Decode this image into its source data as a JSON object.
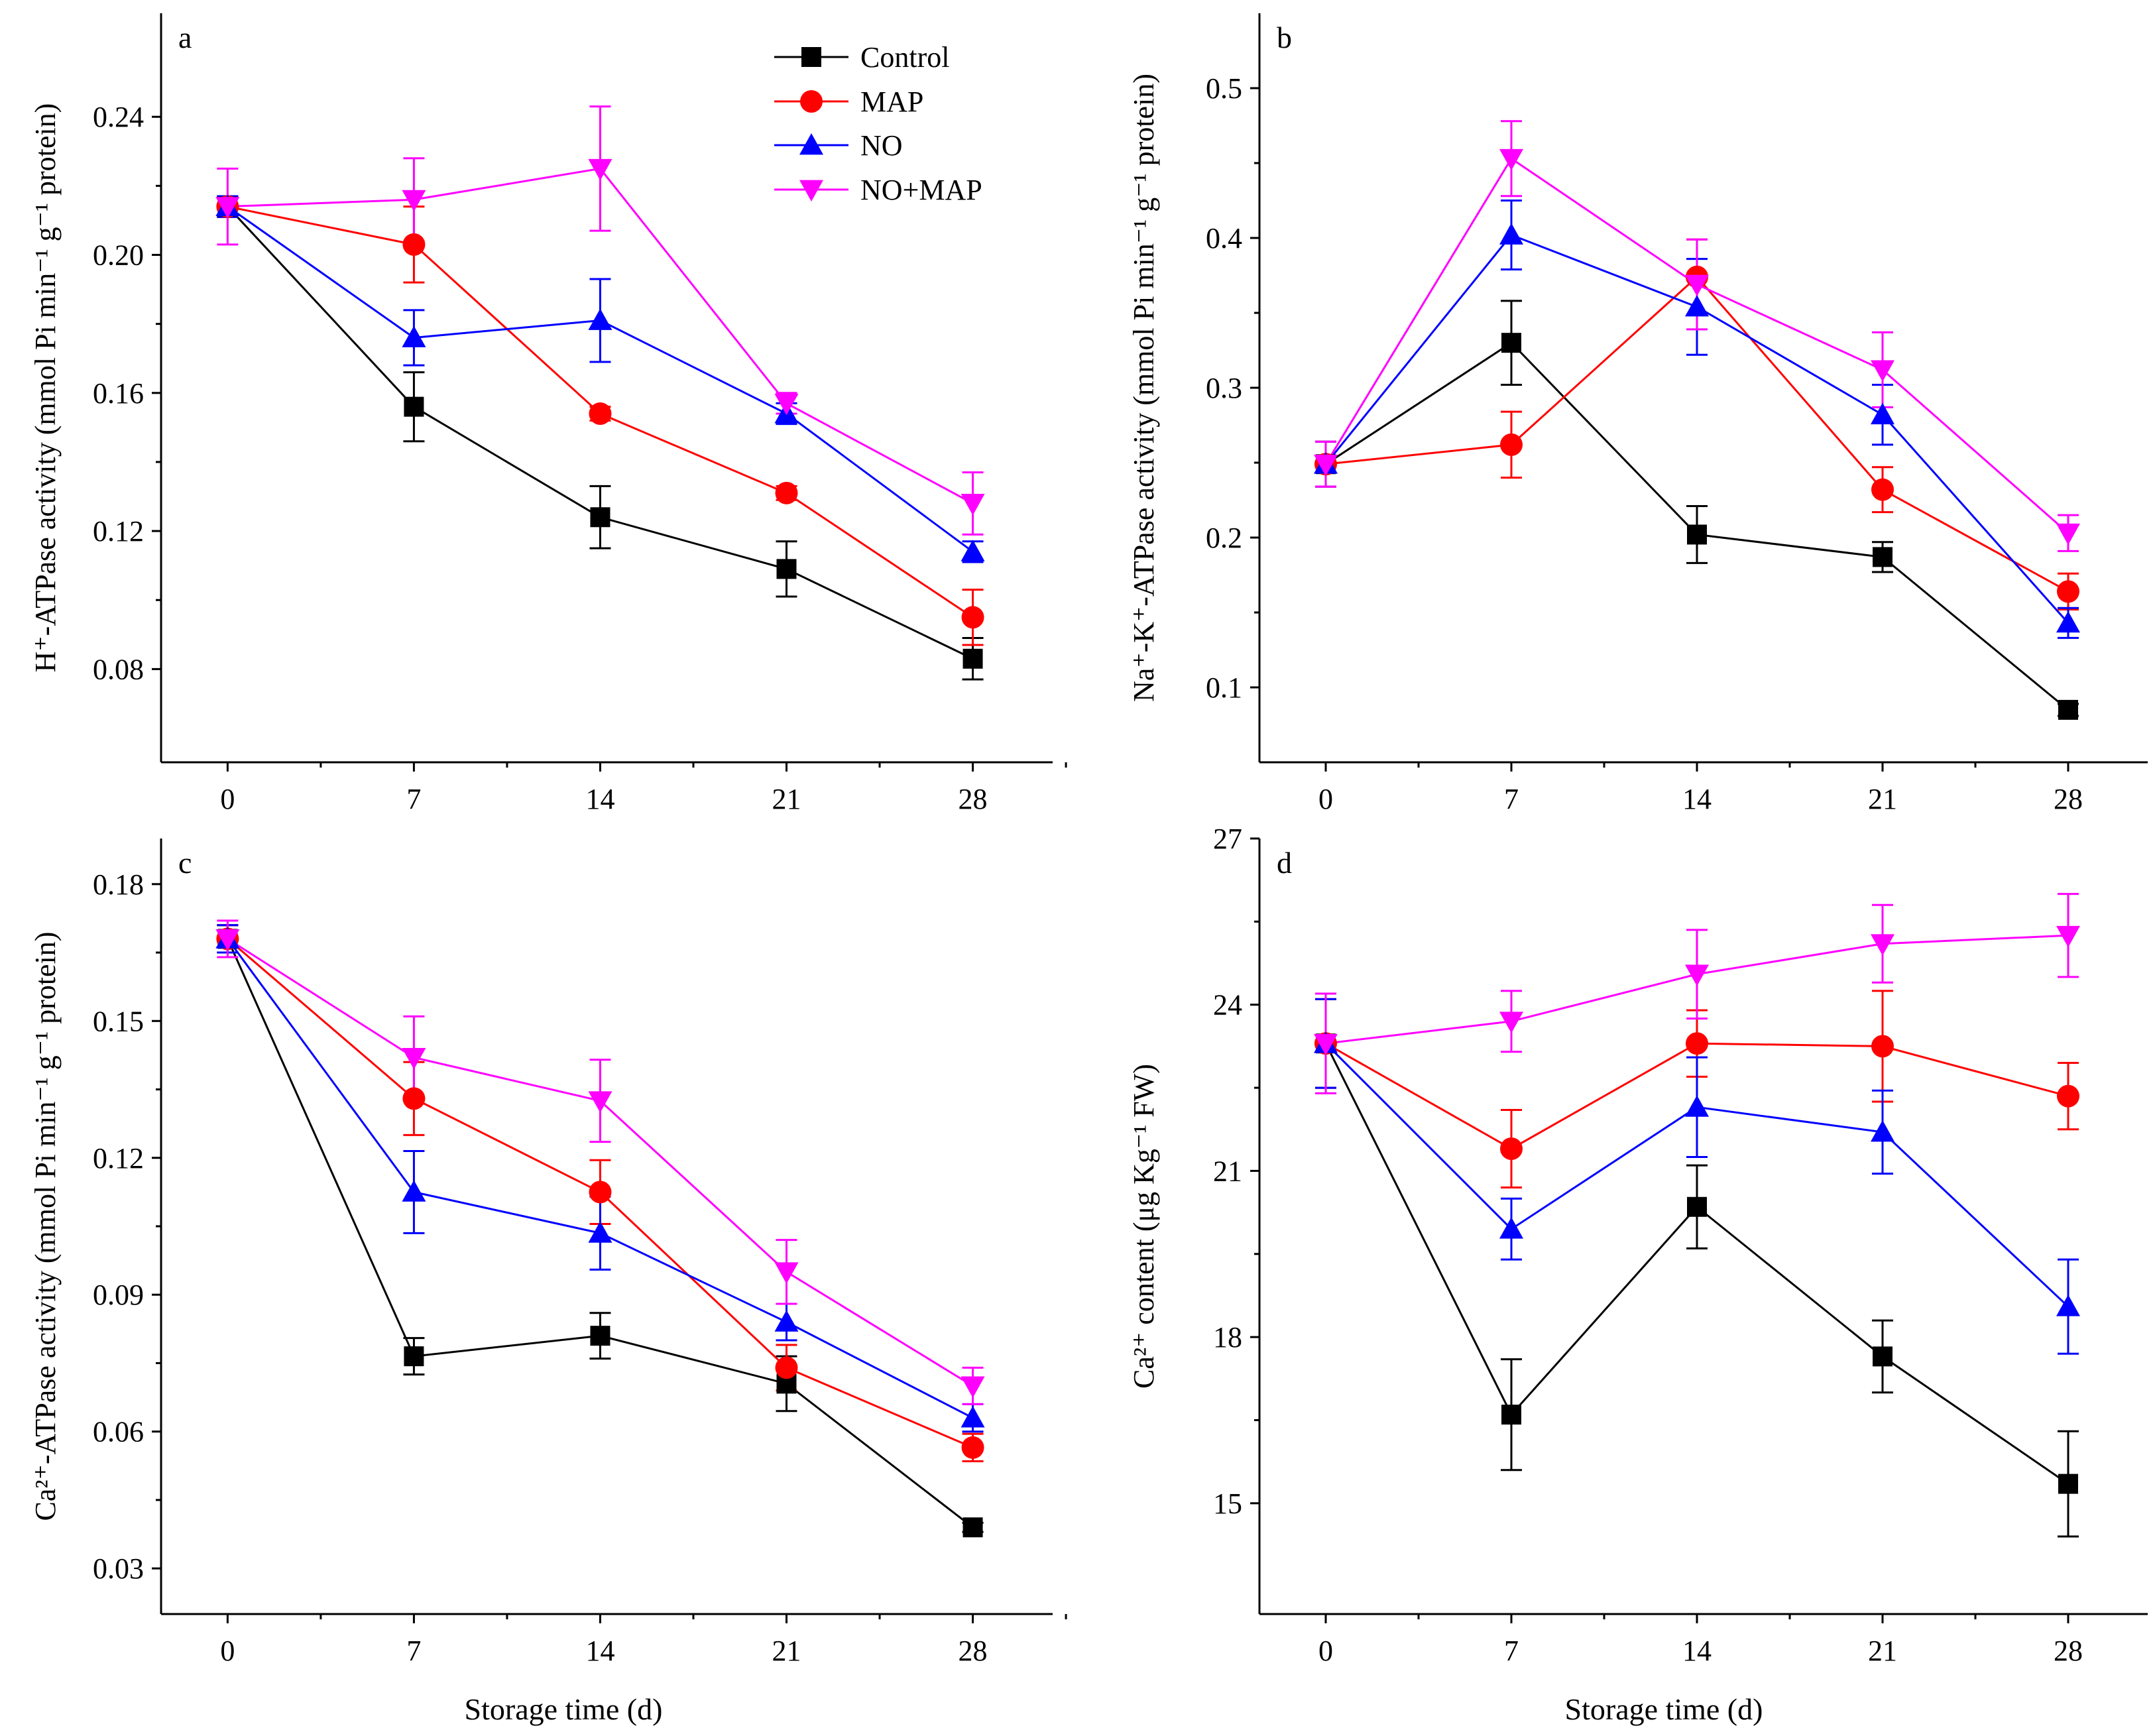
{
  "figure": {
    "legend": [
      "Control",
      "MAP",
      "NO",
      "NO+MAP"
    ],
    "shared_xlabel": "Storage time (d)"
  },
  "series_styles": [
    {
      "name": "Control",
      "color": "#000000",
      "marker": "square"
    },
    {
      "name": "MAP",
      "color": "#ff0000",
      "marker": "circle"
    },
    {
      "name": "NO",
      "color": "#0000ff",
      "marker": "triangle-up"
    },
    {
      "name": "NO+MAP",
      "color": "#ff00ff",
      "marker": "triangle-down"
    }
  ],
  "chart_data": [
    {
      "panel": "a",
      "type": "line",
      "x": [
        0,
        7,
        14,
        21,
        28
      ],
      "xlabel": "",
      "ylabel": "H⁺-ATPase activity (mmol Pi min⁻¹ g⁻¹ protein)",
      "xlim": [
        -2.5,
        31
      ],
      "ylim": [
        0.053,
        0.27
      ],
      "yticks": [
        0.08,
        0.12,
        0.16,
        0.2,
        0.24
      ],
      "ytick_labels": [
        "0.08",
        "0.12",
        "0.16",
        "0.20",
        "0.24"
      ],
      "xtick_labels": [
        "0",
        "7",
        "14",
        "21",
        "28"
      ],
      "series": [
        {
          "name": "Control",
          "values": [
            0.214,
            0.156,
            0.124,
            0.109,
            0.083
          ],
          "errors": [
            0.003,
            0.01,
            0.009,
            0.008,
            0.006
          ]
        },
        {
          "name": "MAP",
          "values": [
            0.214,
            0.203,
            0.154,
            0.131,
            0.095
          ],
          "errors": [
            0.003,
            0.011,
            0.002,
            0.002,
            0.008
          ]
        },
        {
          "name": "NO",
          "values": [
            0.214,
            0.176,
            0.181,
            0.154,
            0.114
          ],
          "errors": [
            0.003,
            0.008,
            0.012,
            0.003,
            0.003
          ]
        },
        {
          "name": "NO+MAP",
          "values": [
            0.214,
            0.216,
            0.225,
            0.157,
            0.128
          ],
          "errors": [
            0.011,
            0.012,
            0.018,
            0.003,
            0.009
          ]
        }
      ]
    },
    {
      "panel": "b",
      "type": "line",
      "x": [
        0,
        7,
        14,
        21,
        28
      ],
      "xlabel": "",
      "ylabel": "Na⁺-K⁺-ATPase activity (mmol Pi min⁻¹ g⁻¹ protein)",
      "xlim": [
        -2.5,
        31
      ],
      "ylim": [
        0.05,
        0.55
      ],
      "yticks": [
        0.1,
        0.2,
        0.3,
        0.4,
        0.5
      ],
      "ytick_labels": [
        "0.1",
        "0.2",
        "0.3",
        "0.4",
        "0.5"
      ],
      "xtick_labels": [
        "0",
        "7",
        "14",
        "21",
        "28"
      ],
      "series": [
        {
          "name": "Control",
          "values": [
            0.249,
            0.33,
            0.202,
            0.187,
            0.085
          ],
          "errors": [
            0.015,
            0.028,
            0.019,
            0.01,
            0.004
          ]
        },
        {
          "name": "MAP",
          "values": [
            0.249,
            0.262,
            0.374,
            0.232,
            0.164
          ],
          "errors": [
            0.015,
            0.022,
            0.025,
            0.015,
            0.012
          ]
        },
        {
          "name": "NO",
          "values": [
            0.249,
            0.402,
            0.354,
            0.282,
            0.143
          ],
          "errors": [
            0.015,
            0.023,
            0.032,
            0.02,
            0.01
          ]
        },
        {
          "name": "NO+MAP",
          "values": [
            0.249,
            0.453,
            0.369,
            0.312,
            0.203
          ],
          "errors": [
            0.015,
            0.025,
            0.03,
            0.025,
            0.012
          ]
        }
      ]
    },
    {
      "panel": "c",
      "type": "line",
      "x": [
        0,
        7,
        14,
        21,
        28
      ],
      "xlabel": "Storage time (d)",
      "ylabel": "Ca²⁺-ATPase activity (mmol Pi min⁻¹ g⁻¹ protein)",
      "xlim": [
        -2.5,
        31
      ],
      "ylim": [
        0.02,
        0.19
      ],
      "yticks": [
        0.03,
        0.06,
        0.09,
        0.12,
        0.15,
        0.18
      ],
      "ytick_labels": [
        "0.03",
        "0.06",
        "0.09",
        "0.12",
        "0.15",
        "0.18"
      ],
      "xtick_labels": [
        "0",
        "7",
        "14",
        "21",
        "28"
      ],
      "series": [
        {
          "name": "Control",
          "values": [
            0.168,
            0.0765,
            0.081,
            0.0705,
            0.039
          ],
          "errors": [
            0.003,
            0.004,
            0.005,
            0.006,
            0.001
          ]
        },
        {
          "name": "MAP",
          "values": [
            0.168,
            0.133,
            0.1125,
            0.074,
            0.0565
          ],
          "errors": [
            0.003,
            0.008,
            0.007,
            0.005,
            0.003
          ]
        },
        {
          "name": "NO",
          "values": [
            0.168,
            0.1125,
            0.1035,
            0.084,
            0.063
          ],
          "errors": [
            0.003,
            0.009,
            0.008,
            0.004,
            0.003
          ]
        },
        {
          "name": "NO+MAP",
          "values": [
            0.168,
            0.142,
            0.1325,
            0.095,
            0.07
          ],
          "errors": [
            0.004,
            0.009,
            0.009,
            0.007,
            0.004
          ]
        }
      ]
    },
    {
      "panel": "d",
      "type": "line",
      "x": [
        0,
        7,
        14,
        21,
        28
      ],
      "xlabel": "Storage time (d)",
      "ylabel": "Ca²⁺ content (μg Kg⁻¹ FW)",
      "xlim": [
        -2.5,
        31
      ],
      "ylim": [
        13,
        27
      ],
      "yticks": [
        15,
        18,
        21,
        24,
        27
      ],
      "ytick_labels": [
        "15",
        "18",
        "21",
        "24",
        "27"
      ],
      "xtick_labels": [
        "0",
        "7",
        "14",
        "21",
        "28"
      ],
      "series": [
        {
          "name": "Control",
          "values": [
            23.3,
            16.6,
            20.35,
            17.65,
            15.35
          ],
          "errors": [
            0.8,
            1.0,
            0.75,
            0.65,
            0.95
          ]
        },
        {
          "name": "MAP",
          "values": [
            23.3,
            21.4,
            23.3,
            23.25,
            22.35
          ],
          "errors": [
            0.8,
            0.7,
            0.6,
            1.0,
            0.6
          ]
        },
        {
          "name": "NO",
          "values": [
            23.3,
            19.95,
            22.15,
            21.7,
            18.55
          ],
          "errors": [
            0.8,
            0.55,
            0.9,
            0.75,
            0.85
          ]
        },
        {
          "name": "NO+MAP",
          "values": [
            23.3,
            23.7,
            24.55,
            25.1,
            25.25
          ],
          "errors": [
            0.9,
            0.55,
            0.8,
            0.7,
            0.75
          ]
        }
      ]
    }
  ]
}
